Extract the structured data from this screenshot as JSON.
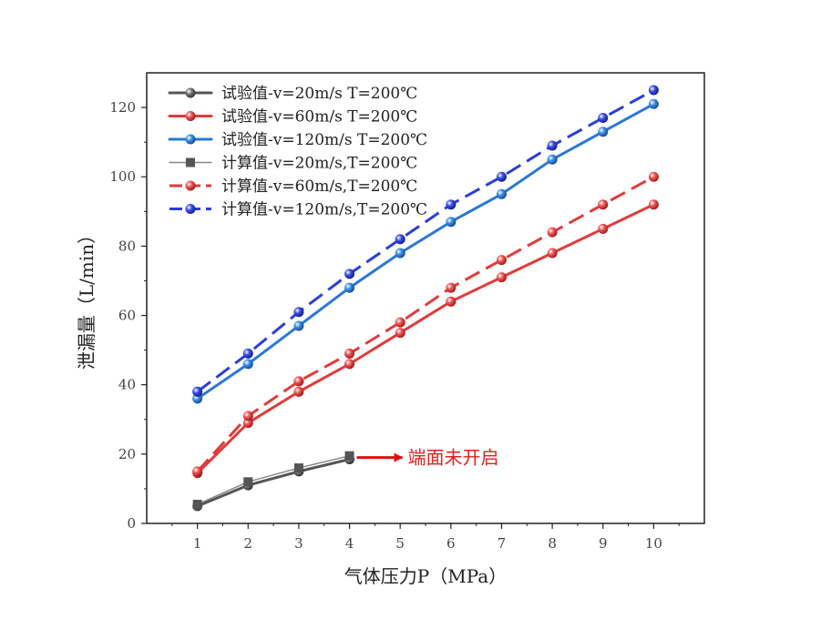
{
  "chart_data": {
    "type": "line",
    "xlabel": "气体压力P（MPa）",
    "ylabel": "泄漏量（L/min）",
    "xlim": [
      0,
      11
    ],
    "ylim": [
      0,
      130
    ],
    "x_ticks": [
      1,
      2,
      3,
      4,
      5,
      6,
      7,
      8,
      9,
      10
    ],
    "y_ticks": [
      0,
      20,
      40,
      60,
      80,
      100,
      120
    ],
    "grid": false,
    "legend_position": "top-left",
    "series": [
      {
        "name": "试验值-v=20m/s T=200℃",
        "color": "#555555",
        "style": "solid",
        "marker": "sphere",
        "x": [
          1,
          2,
          3,
          4
        ],
        "values": [
          5,
          11,
          15,
          18.5
        ]
      },
      {
        "name": "试验值-v=60m/s T=200℃",
        "color": "#e03c3c",
        "style": "solid",
        "marker": "sphere",
        "x": [
          1,
          2,
          3,
          4,
          5,
          6,
          7,
          8,
          9,
          10
        ],
        "values": [
          14.5,
          29,
          38,
          46,
          55,
          64,
          71,
          78,
          85,
          92
        ]
      },
      {
        "name": "试验值-v=120m/s T=200℃",
        "color": "#2a78d6",
        "style": "solid",
        "marker": "sphere",
        "x": [
          1,
          2,
          3,
          4,
          5,
          6,
          7,
          8,
          9,
          10
        ],
        "values": [
          36,
          46,
          57,
          68,
          78,
          87,
          95,
          105,
          113,
          121
        ]
      },
      {
        "name": "计算值-v=20m/s,T=200℃",
        "color": "#888888",
        "style": "solid-thin",
        "marker": "square",
        "x": [
          1,
          2,
          3,
          4
        ],
        "values": [
          5.5,
          12,
          16,
          19.5
        ]
      },
      {
        "name": "计算值-v=60m/s,T=200℃",
        "color": "#e03c3c",
        "style": "dashed",
        "marker": "sphere",
        "x": [
          1,
          2,
          3,
          4,
          5,
          6,
          7,
          8,
          9,
          10
        ],
        "values": [
          15,
          31,
          41,
          49,
          58,
          68,
          76,
          84,
          92,
          100
        ]
      },
      {
        "name": "计算值-v=120m/s,T=200℃",
        "color": "#2a3fd6",
        "style": "dashed",
        "marker": "sphere",
        "x": [
          1,
          2,
          3,
          4,
          5,
          6,
          7,
          8,
          9,
          10
        ],
        "values": [
          38,
          49,
          61,
          72,
          82,
          92,
          100,
          109,
          117,
          125
        ]
      }
    ],
    "annotation": {
      "text": "端面未开启",
      "x": 4,
      "y": 19,
      "color": "#e02020"
    }
  }
}
